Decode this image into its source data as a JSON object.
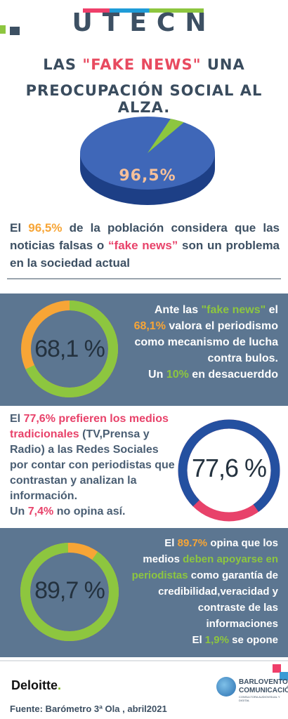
{
  "header": {
    "logo_text": "UTECN",
    "title_line1_a": "LAS ",
    "title_line1_b": "\"FAKE NEWS\"",
    "title_line1_c": " UNA",
    "title_line2": "PREOCUPACIÓN SOCIAL AL ALZA."
  },
  "pie": {
    "value_label": "96,5%",
    "value": 96.5
  },
  "statement": {
    "a": "El ",
    "pct": "96,5%",
    "b": " de la población considera que las noticias falsas o ",
    "fake": "“fake news”",
    "c": " son un problema en la sociedad actual"
  },
  "stat1": {
    "ring_label": "68,1 %",
    "value": 68.1,
    "l1a": "Ante las ",
    "l1b": "\"fake news\"",
    "l1c": " el",
    "pct": "68,1%",
    "l2": " valora el periodismo",
    "l3": "como mecanismo de lucha",
    "l4": "contra bulos.",
    "l5a": "Un ",
    "l5b": "10%",
    "l5c": " en desacuerddo"
  },
  "stat2": {
    "ring_label": "77,6 %",
    "value": 77.6,
    "a": "El ",
    "pct": "77,6%",
    "b": " prefieren los medios tradicionales",
    "c": " (TV,Prensa y Radio) a las Redes Sociales por contar con periodistas que contrastan y analizan la información.",
    "d": "Un ",
    "e": "7,4%",
    "f": " no opina así."
  },
  "stat3": {
    "ring_label": "89,7 %",
    "value": 89.7,
    "a": "El ",
    "pct": "89.7%",
    "b": " opina que los",
    "c": "medios ",
    "d": "deben apoyarse en",
    "e": "periodistas",
    "f": " como garantía de",
    "g": "credibilidad,veracidad y",
    "h": "contraste de las",
    "i": "informaciones",
    "j": "El ",
    "k": "1,9%",
    "l": " se opone"
  },
  "footer": {
    "deloitte": "Deloitte",
    "deloitte_dot": ".",
    "bv_line1": "BARLOVENTO",
    "bv_line2": "COMUNICACIÓN",
    "bv_sub": "CONSULTORA AUDIOVISUAL Y DIGITAL",
    "source": "Fuente: Barómetro 3ª Ola , abril2021"
  },
  "colors": {
    "navy": "#3d5063",
    "panel": "#5c7691",
    "green": "#8dc63f",
    "orange": "#f7a536",
    "pink": "#e8426a",
    "ring_blue": "#2450a0",
    "pie_blue": "#3f67b8"
  }
}
